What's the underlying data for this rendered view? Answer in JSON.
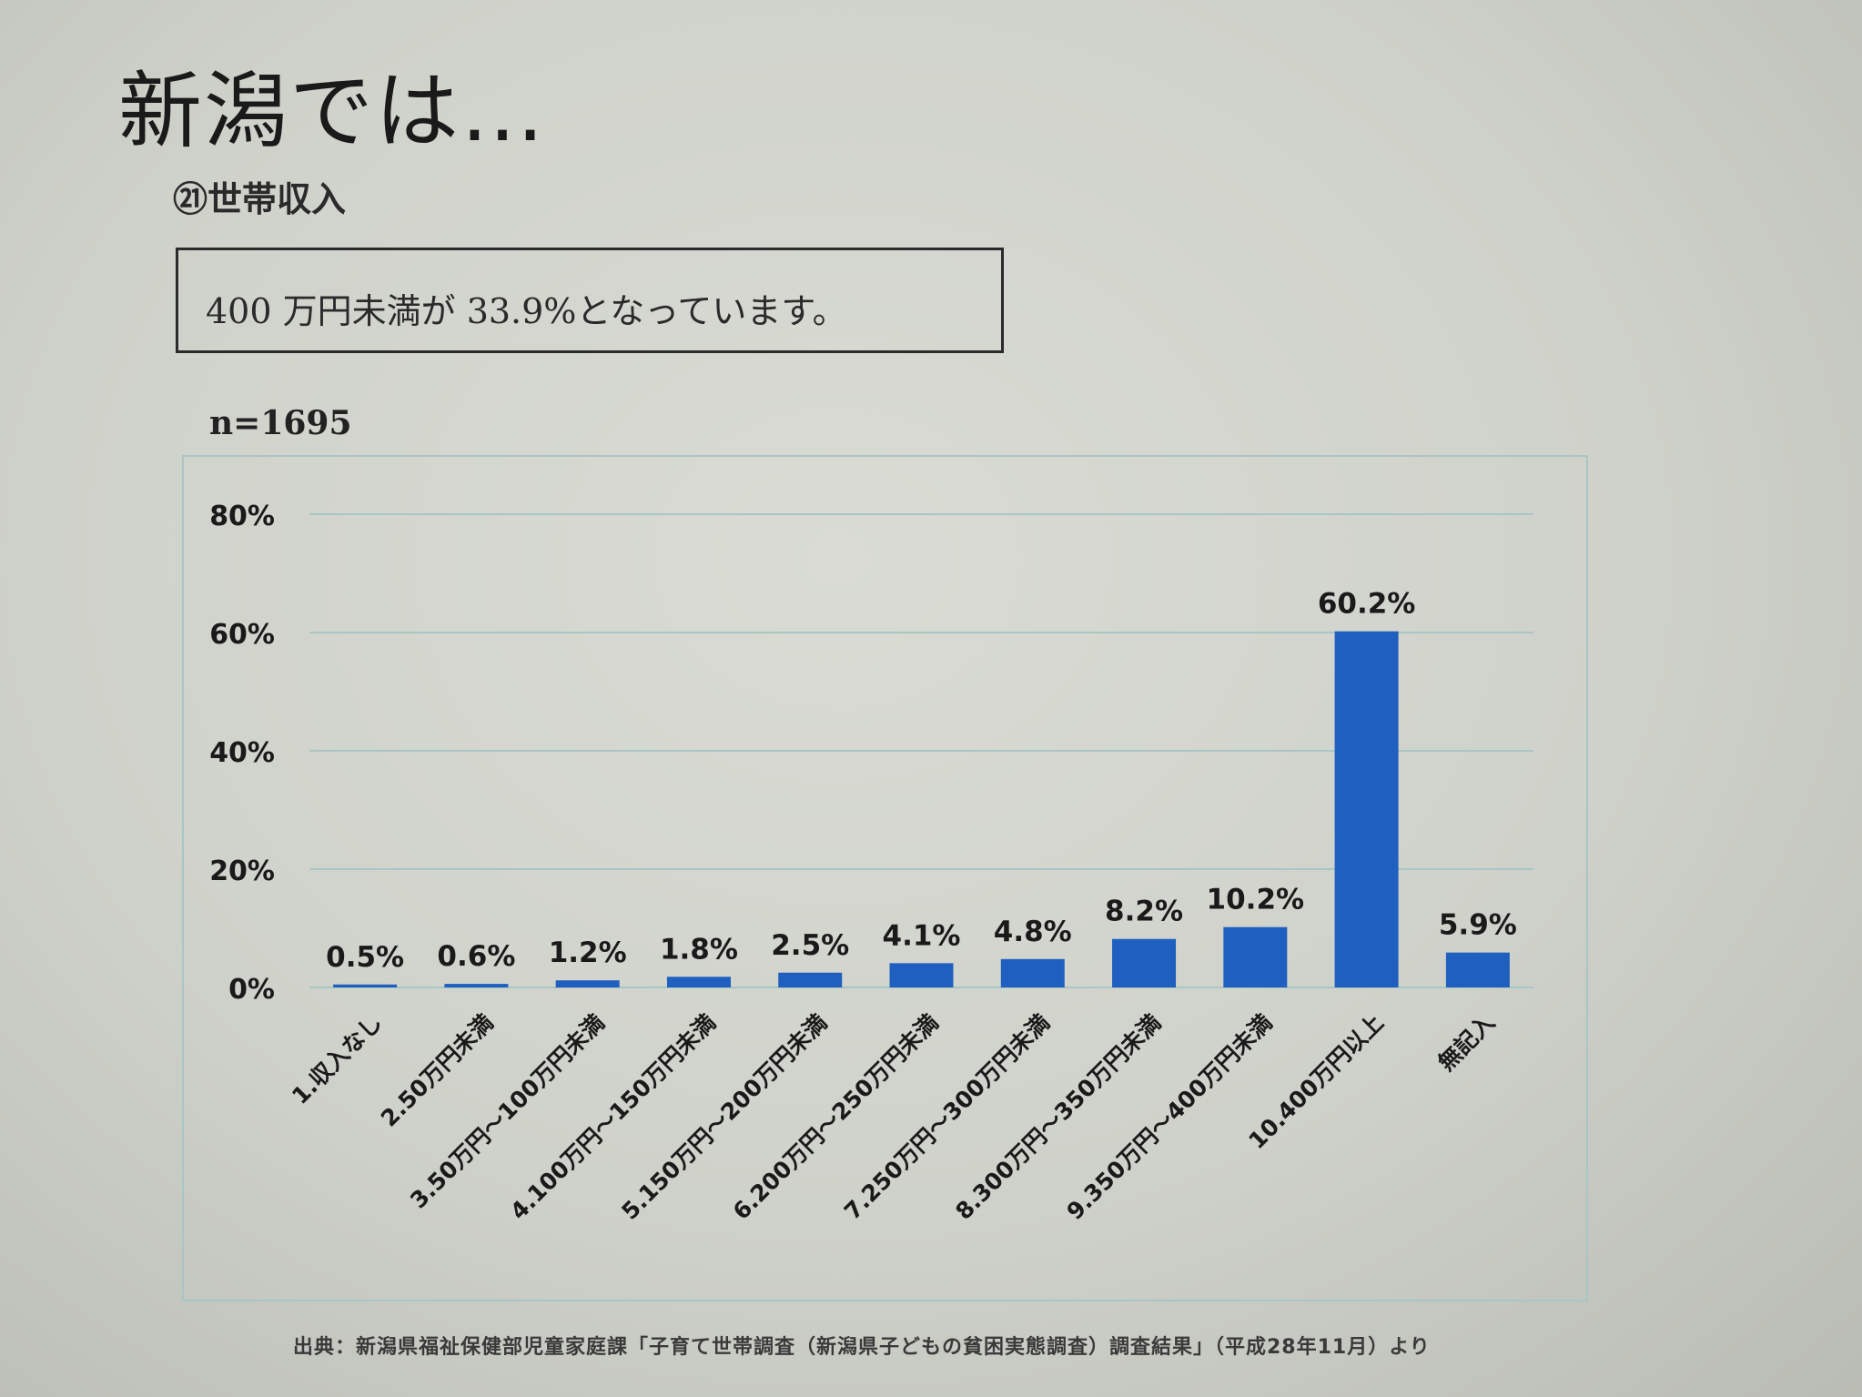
{
  "slide": {
    "title": "新潟では…",
    "section_label": "㉑世帯収入",
    "summary": "400 万円未満が 33.9%となっています。",
    "sample_size": "n=1695",
    "source": "出典：新潟県福祉保健部児童家庭課「子育て世帯調査（新潟県子どもの貧困実態調査）調査結果」（平成28年11月）より"
  },
  "colors": {
    "bar": "#1f5fbf",
    "gridline": "#a9c6c4",
    "axis_text": "#1a1a1a"
  },
  "chart_data": {
    "type": "bar",
    "categories": [
      "1.収入なし",
      "2.50万円未満",
      "3.50万円～100万円未満",
      "4.100万円～150万円未満",
      "5.150万円～200万円未満",
      "6.200万円～250万円未満",
      "7.250万円～300万円未満",
      "8.300万円～350万円未満",
      "9.350万円～400万円未満",
      "10.400万円以上",
      "無記入"
    ],
    "values": [
      0.5,
      0.6,
      1.2,
      1.8,
      2.5,
      4.1,
      4.8,
      8.2,
      10.2,
      60.2,
      5.9
    ],
    "data_labels": [
      "0.5%",
      "0.6%",
      "1.2%",
      "1.8%",
      "2.5%",
      "4.1%",
      "4.8%",
      "8.2%",
      "10.2%",
      "60.2%",
      "5.9%"
    ],
    "y_ticks": [
      0,
      20,
      40,
      60,
      80
    ],
    "y_tick_labels": [
      "0%",
      "20%",
      "40%",
      "60%",
      "80%"
    ],
    "ylim": [
      0,
      80
    ],
    "grid": true,
    "legend": "none"
  }
}
